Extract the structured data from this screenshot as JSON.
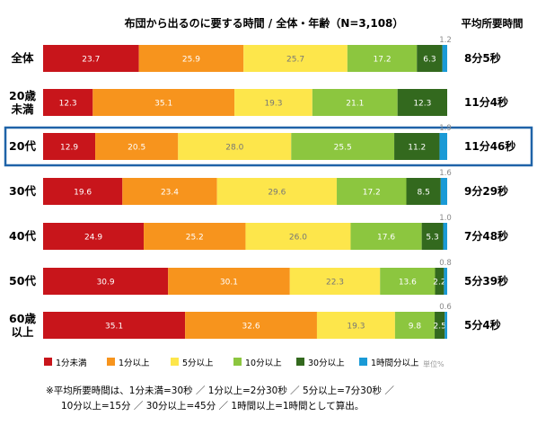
{
  "chart_data": {
    "type": "bar",
    "orientation": "horizontal-stacked-100",
    "title": "布団から出るのに要する時間 / 全体・年齢（N=3,108）",
    "avg_header": "平均所要時間",
    "unit_note": "単位%",
    "categories": [
      {
        "label": "全体",
        "avg": "8分5秒"
      },
      {
        "label": "20歳\n未満",
        "avg": "11分4秒"
      },
      {
        "label": "20代",
        "avg": "11分46秒",
        "highlight": true
      },
      {
        "label": "30代",
        "avg": "9分29秒"
      },
      {
        "label": "40代",
        "avg": "7分48秒"
      },
      {
        "label": "50代",
        "avg": "5分39秒"
      },
      {
        "label": "60歳\n以上",
        "avg": "5分4秒"
      }
    ],
    "series": [
      {
        "name": "1分未満",
        "color": "#c8151b",
        "text_color": "#ffffff",
        "values": [
          23.7,
          12.3,
          12.9,
          19.6,
          24.9,
          30.9,
          35.1
        ]
      },
      {
        "name": "1分以上",
        "color": "#f7941d",
        "text_color": "#ffffff",
        "values": [
          25.9,
          35.1,
          20.5,
          23.4,
          25.2,
          30.1,
          32.6
        ]
      },
      {
        "name": "5分以上",
        "color": "#fde64b",
        "text_color": "#777777",
        "values": [
          25.7,
          19.3,
          28.0,
          29.6,
          26.0,
          22.3,
          19.3
        ]
      },
      {
        "name": "10分以上",
        "color": "#8cc63f",
        "text_color": "#ffffff",
        "values": [
          17.2,
          21.1,
          25.5,
          17.2,
          17.6,
          13.6,
          9.8
        ]
      },
      {
        "name": "30分以上",
        "color": "#33691e",
        "text_color": "#ffffff",
        "values": [
          6.3,
          12.3,
          11.2,
          8.5,
          5.3,
          2.2,
          2.5
        ]
      },
      {
        "name": "1時間分以上",
        "color": "#1a9ad6",
        "text_color": "#888888",
        "values": [
          1.2,
          0.0,
          1.9,
          1.6,
          1.0,
          0.8,
          0.6
        ]
      }
    ],
    "small_value_labels": [
      "1.2",
      "",
      "1.9",
      "1.6",
      "1.0",
      "0.8",
      "0.6"
    ],
    "footnote": [
      "※平均所要時間は、1分未満=30秒 ／ 1分以上=2分30秒 ／ 5分以上=7分30秒 ／",
      "10分以上=15分 ／ 30分以上=45分 ／ 1時間以上=1時間として算出。"
    ]
  }
}
